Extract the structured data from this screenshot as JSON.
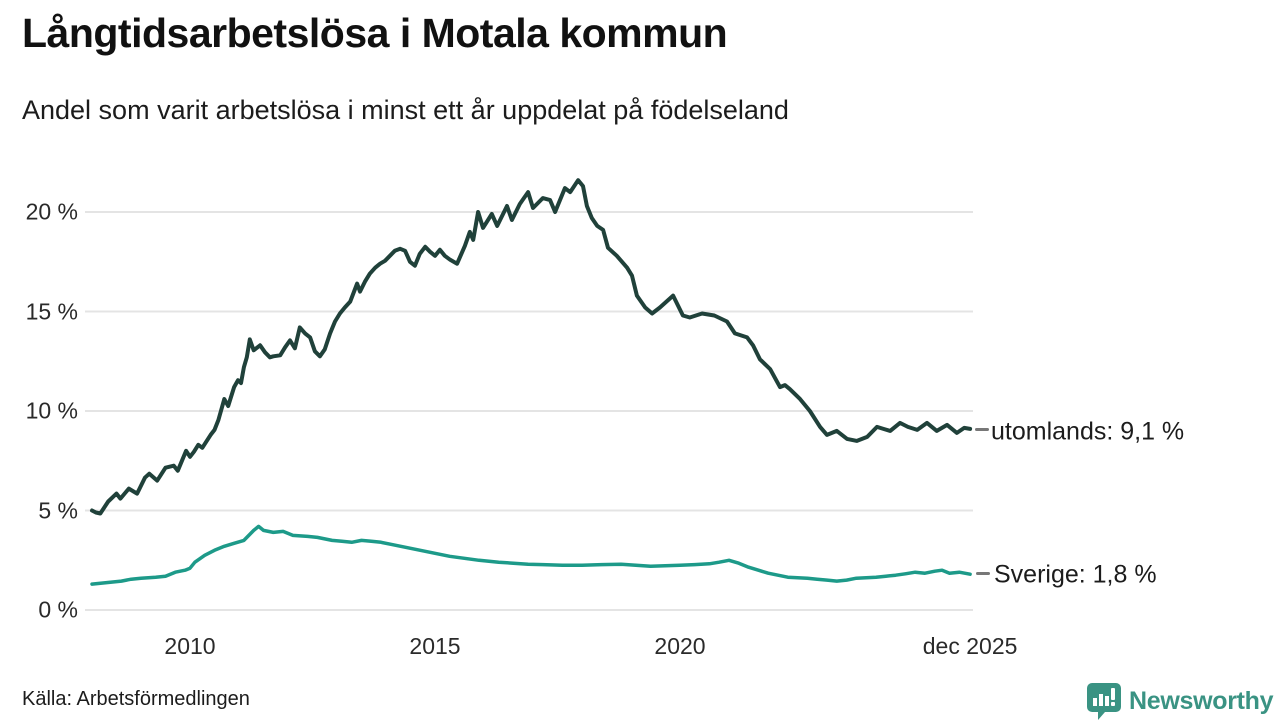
{
  "header": {
    "title": "Långtidsarbetslösa i Motala kommun",
    "subtitle": "Andel som varit arbetslösa i minst ett år uppdelat på födelseland"
  },
  "footer": {
    "source": "Källa: Arbetsförmedlingen",
    "brand": "Newsworthy"
  },
  "colors": {
    "utomlands_line": "#20413a",
    "sverige_line": "#1d9a89",
    "grid": "#e4e4e4",
    "connector": "#777777",
    "brand_teal": "#3a9383"
  },
  "chart_data": {
    "type": "line",
    "title": "Långtidsarbetslösa i Motala kommun",
    "subtitle": "Andel som varit arbetslösa i minst ett år uppdelat på födelseland",
    "xlabel": "",
    "ylabel": "",
    "grid": "horizontal",
    "legend_position": "end-of-line-labels",
    "xlim": [
      2008.0,
      2025.92
    ],
    "ylim": [
      0,
      22.6
    ],
    "y_ticks": [
      {
        "label": "20 %",
        "value": 20
      },
      {
        "label": "15 %",
        "value": 15
      },
      {
        "label": "10 %",
        "value": 10
      },
      {
        "label": "5 %",
        "value": 5
      },
      {
        "label": "0 %",
        "value": 0
      }
    ],
    "x_ticks": [
      {
        "label": "2010",
        "year": 2010
      },
      {
        "label": "2015",
        "year": 2015
      },
      {
        "label": "2020",
        "year": 2020
      },
      {
        "label": "dec 2025",
        "year": 2025.92
      }
    ],
    "series": [
      {
        "name": "utomlands",
        "end_label": "utomlands: 9,1 %",
        "end_value": 9.1,
        "color_key": "utomlands_line",
        "stroke_width": 4,
        "points": [
          [
            2008.0,
            5.0
          ],
          [
            2008.08,
            4.9
          ],
          [
            2008.17,
            4.85
          ],
          [
            2008.33,
            5.45
          ],
          [
            2008.5,
            5.85
          ],
          [
            2008.58,
            5.6
          ],
          [
            2008.75,
            6.1
          ],
          [
            2008.92,
            5.85
          ],
          [
            2009.08,
            6.65
          ],
          [
            2009.17,
            6.85
          ],
          [
            2009.33,
            6.5
          ],
          [
            2009.5,
            7.15
          ],
          [
            2009.67,
            7.25
          ],
          [
            2009.75,
            7.0
          ],
          [
            2009.92,
            8.0
          ],
          [
            2010.0,
            7.7
          ],
          [
            2010.08,
            7.95
          ],
          [
            2010.17,
            8.3
          ],
          [
            2010.25,
            8.15
          ],
          [
            2010.42,
            8.8
          ],
          [
            2010.5,
            9.05
          ],
          [
            2010.58,
            9.55
          ],
          [
            2010.7,
            10.6
          ],
          [
            2010.78,
            10.25
          ],
          [
            2010.9,
            11.2
          ],
          [
            2010.98,
            11.55
          ],
          [
            2011.04,
            11.4
          ],
          [
            2011.1,
            12.2
          ],
          [
            2011.16,
            12.7
          ],
          [
            2011.22,
            13.6
          ],
          [
            2011.3,
            13.05
          ],
          [
            2011.43,
            13.3
          ],
          [
            2011.53,
            12.95
          ],
          [
            2011.63,
            12.7
          ],
          [
            2011.7,
            12.75
          ],
          [
            2011.84,
            12.8
          ],
          [
            2011.94,
            13.2
          ],
          [
            2012.04,
            13.55
          ],
          [
            2012.14,
            13.15
          ],
          [
            2012.24,
            14.2
          ],
          [
            2012.35,
            13.9
          ],
          [
            2012.45,
            13.7
          ],
          [
            2012.55,
            13.0
          ],
          [
            2012.65,
            12.75
          ],
          [
            2012.75,
            13.1
          ],
          [
            2012.86,
            13.9
          ],
          [
            2012.96,
            14.5
          ],
          [
            2013.06,
            14.9
          ],
          [
            2013.16,
            15.2
          ],
          [
            2013.27,
            15.5
          ],
          [
            2013.41,
            16.4
          ],
          [
            2013.47,
            16.0
          ],
          [
            2013.57,
            16.5
          ],
          [
            2013.67,
            16.9
          ],
          [
            2013.78,
            17.2
          ],
          [
            2013.88,
            17.4
          ],
          [
            2013.98,
            17.55
          ],
          [
            2014.08,
            17.8
          ],
          [
            2014.18,
            18.05
          ],
          [
            2014.29,
            18.15
          ],
          [
            2014.39,
            18.05
          ],
          [
            2014.49,
            17.5
          ],
          [
            2014.59,
            17.3
          ],
          [
            2014.69,
            17.9
          ],
          [
            2014.8,
            18.25
          ],
          [
            2014.9,
            18.0
          ],
          [
            2015.0,
            17.8
          ],
          [
            2015.1,
            18.1
          ],
          [
            2015.2,
            17.8
          ],
          [
            2015.31,
            17.6
          ],
          [
            2015.45,
            17.4
          ],
          [
            2015.61,
            18.3
          ],
          [
            2015.71,
            19.0
          ],
          [
            2015.78,
            18.6
          ],
          [
            2015.88,
            20.0
          ],
          [
            2015.98,
            19.2
          ],
          [
            2016.16,
            19.9
          ],
          [
            2016.27,
            19.3
          ],
          [
            2016.47,
            20.3
          ],
          [
            2016.57,
            19.6
          ],
          [
            2016.73,
            20.4
          ],
          [
            2016.9,
            21.0
          ],
          [
            2017.0,
            20.2
          ],
          [
            2017.2,
            20.7
          ],
          [
            2017.35,
            20.6
          ],
          [
            2017.45,
            20.0
          ],
          [
            2017.65,
            21.2
          ],
          [
            2017.76,
            21.0
          ],
          [
            2017.92,
            21.6
          ],
          [
            2018.02,
            21.3
          ],
          [
            2018.1,
            20.3
          ],
          [
            2018.2,
            19.7
          ],
          [
            2018.31,
            19.3
          ],
          [
            2018.43,
            19.1
          ],
          [
            2018.53,
            18.2
          ],
          [
            2018.71,
            17.8
          ],
          [
            2018.92,
            17.2
          ],
          [
            2019.02,
            16.8
          ],
          [
            2019.12,
            15.8
          ],
          [
            2019.29,
            15.2
          ],
          [
            2019.43,
            14.9
          ],
          [
            2019.59,
            15.2
          ],
          [
            2019.86,
            15.8
          ],
          [
            2020.06,
            14.8
          ],
          [
            2020.2,
            14.7
          ],
          [
            2020.45,
            14.9
          ],
          [
            2020.7,
            14.8
          ],
          [
            2020.96,
            14.5
          ],
          [
            2021.12,
            13.9
          ],
          [
            2021.37,
            13.7
          ],
          [
            2021.49,
            13.3
          ],
          [
            2021.63,
            12.6
          ],
          [
            2021.84,
            12.1
          ],
          [
            2022.04,
            11.2
          ],
          [
            2022.14,
            11.3
          ],
          [
            2022.24,
            11.1
          ],
          [
            2022.45,
            10.6
          ],
          [
            2022.65,
            10.0
          ],
          [
            2022.86,
            9.2
          ],
          [
            2023.0,
            8.8
          ],
          [
            2023.1,
            8.9
          ],
          [
            2023.2,
            9.0
          ],
          [
            2023.41,
            8.6
          ],
          [
            2023.61,
            8.5
          ],
          [
            2023.82,
            8.7
          ],
          [
            2024.02,
            9.2
          ],
          [
            2024.15,
            9.1
          ],
          [
            2024.29,
            9.0
          ],
          [
            2024.49,
            9.4
          ],
          [
            2024.65,
            9.2
          ],
          [
            2024.84,
            9.05
          ],
          [
            2025.04,
            9.4
          ],
          [
            2025.24,
            9.0
          ],
          [
            2025.45,
            9.3
          ],
          [
            2025.65,
            8.9
          ],
          [
            2025.8,
            9.15
          ],
          [
            2025.92,
            9.1
          ]
        ]
      },
      {
        "name": "Sverige",
        "end_label": "Sverige: 1,8 %",
        "end_value": 1.8,
        "color_key": "sverige_line",
        "stroke_width": 3.5,
        "points": [
          [
            2008.0,
            1.3
          ],
          [
            2008.2,
            1.35
          ],
          [
            2008.4,
            1.4
          ],
          [
            2008.6,
            1.45
          ],
          [
            2008.8,
            1.55
          ],
          [
            2009.0,
            1.6
          ],
          [
            2009.3,
            1.65
          ],
          [
            2009.5,
            1.7
          ],
          [
            2009.7,
            1.9
          ],
          [
            2009.9,
            2.0
          ],
          [
            2010.0,
            2.1
          ],
          [
            2010.1,
            2.4
          ],
          [
            2010.3,
            2.75
          ],
          [
            2010.5,
            3.0
          ],
          [
            2010.7,
            3.2
          ],
          [
            2010.9,
            3.35
          ],
          [
            2011.1,
            3.5
          ],
          [
            2011.2,
            3.75
          ],
          [
            2011.3,
            4.0
          ],
          [
            2011.4,
            4.2
          ],
          [
            2011.5,
            4.0
          ],
          [
            2011.7,
            3.9
          ],
          [
            2011.9,
            3.95
          ],
          [
            2012.1,
            3.75
          ],
          [
            2012.4,
            3.7
          ],
          [
            2012.6,
            3.65
          ],
          [
            2012.9,
            3.5
          ],
          [
            2013.1,
            3.45
          ],
          [
            2013.3,
            3.4
          ],
          [
            2013.5,
            3.5
          ],
          [
            2013.7,
            3.45
          ],
          [
            2013.9,
            3.4
          ],
          [
            2014.1,
            3.3
          ],
          [
            2014.3,
            3.2
          ],
          [
            2014.6,
            3.05
          ],
          [
            2014.9,
            2.9
          ],
          [
            2015.1,
            2.8
          ],
          [
            2015.3,
            2.7
          ],
          [
            2015.6,
            2.6
          ],
          [
            2015.9,
            2.5
          ],
          [
            2016.1,
            2.45
          ],
          [
            2016.3,
            2.4
          ],
          [
            2016.6,
            2.35
          ],
          [
            2016.9,
            2.3
          ],
          [
            2017.2,
            2.28
          ],
          [
            2017.6,
            2.25
          ],
          [
            2018.0,
            2.25
          ],
          [
            2018.4,
            2.28
          ],
          [
            2018.8,
            2.3
          ],
          [
            2019.1,
            2.25
          ],
          [
            2019.4,
            2.2
          ],
          [
            2019.7,
            2.22
          ],
          [
            2020.0,
            2.25
          ],
          [
            2020.3,
            2.28
          ],
          [
            2020.6,
            2.32
          ],
          [
            2020.8,
            2.4
          ],
          [
            2021.0,
            2.5
          ],
          [
            2021.2,
            2.35
          ],
          [
            2021.4,
            2.15
          ],
          [
            2021.6,
            2.0
          ],
          [
            2021.8,
            1.85
          ],
          [
            2022.0,
            1.75
          ],
          [
            2022.2,
            1.65
          ],
          [
            2022.4,
            1.62
          ],
          [
            2022.6,
            1.6
          ],
          [
            2022.8,
            1.55
          ],
          [
            2023.0,
            1.5
          ],
          [
            2023.2,
            1.45
          ],
          [
            2023.4,
            1.5
          ],
          [
            2023.6,
            1.6
          ],
          [
            2023.8,
            1.62
          ],
          [
            2024.0,
            1.65
          ],
          [
            2024.2,
            1.7
          ],
          [
            2024.4,
            1.75
          ],
          [
            2024.6,
            1.82
          ],
          [
            2024.8,
            1.9
          ],
          [
            2025.0,
            1.85
          ],
          [
            2025.2,
            1.95
          ],
          [
            2025.35,
            2.0
          ],
          [
            2025.5,
            1.85
          ],
          [
            2025.7,
            1.9
          ],
          [
            2025.92,
            1.8
          ]
        ]
      }
    ]
  }
}
